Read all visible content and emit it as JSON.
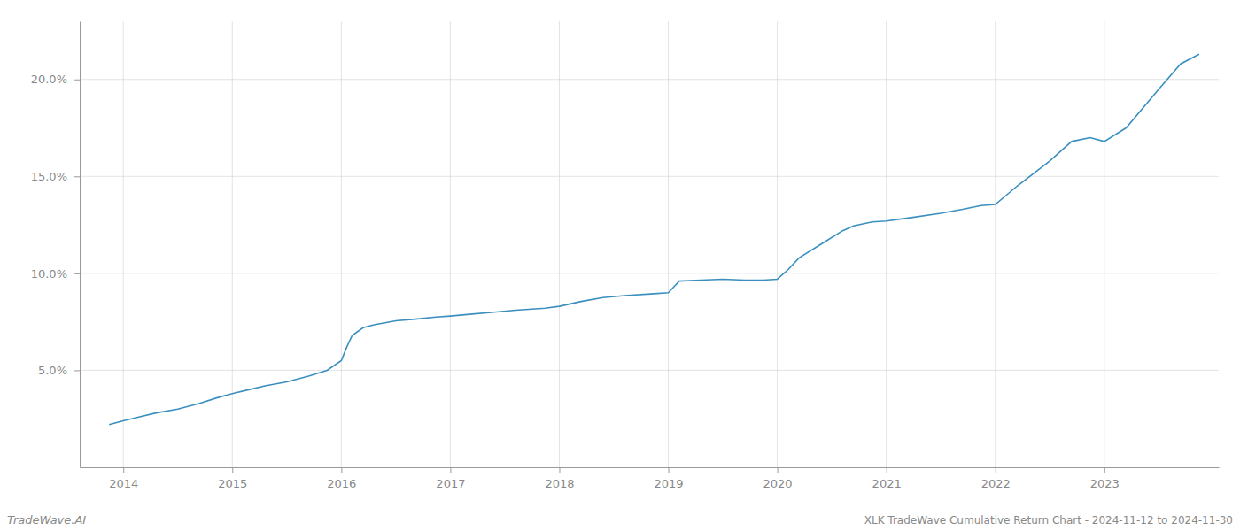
{
  "chart_data": {
    "type": "line",
    "title": "XLK TradeWave Cumulative Return Chart - 2024-11-12 to 2024-11-30",
    "annotations": [
      "TradeWave.AI"
    ],
    "x": [
      2013.87,
      2014.0,
      2014.15,
      2014.3,
      2014.5,
      2014.7,
      2014.87,
      2015.0,
      2015.15,
      2015.3,
      2015.5,
      2015.7,
      2015.87,
      2016.0,
      2016.05,
      2016.1,
      2016.2,
      2016.3,
      2016.5,
      2016.7,
      2016.87,
      2017.0,
      2017.2,
      2017.4,
      2017.6,
      2017.87,
      2018.0,
      2018.2,
      2018.4,
      2018.6,
      2018.87,
      2019.0,
      2019.05,
      2019.1,
      2019.3,
      2019.5,
      2019.7,
      2019.87,
      2020.0,
      2020.1,
      2020.2,
      2020.4,
      2020.6,
      2020.7,
      2020.87,
      2021.0,
      2021.2,
      2021.5,
      2021.7,
      2021.87,
      2022.0,
      2022.2,
      2022.5,
      2022.7,
      2022.87,
      2023.0,
      2023.2,
      2023.5,
      2023.7,
      2023.87
    ],
    "values": [
      2.2,
      2.4,
      2.6,
      2.8,
      3.0,
      3.3,
      3.6,
      3.8,
      4.0,
      4.2,
      4.4,
      4.7,
      5.0,
      5.5,
      6.2,
      6.8,
      7.2,
      7.35,
      7.55,
      7.65,
      7.75,
      7.8,
      7.9,
      8.0,
      8.1,
      8.2,
      8.3,
      8.55,
      8.75,
      8.85,
      8.95,
      9.0,
      9.3,
      9.6,
      9.65,
      9.7,
      9.65,
      9.65,
      9.7,
      10.2,
      10.8,
      11.5,
      12.2,
      12.45,
      12.65,
      12.7,
      12.85,
      13.1,
      13.3,
      13.5,
      13.55,
      14.5,
      15.8,
      16.8,
      17.0,
      16.8,
      17.5,
      19.5,
      20.8,
      21.3
    ],
    "color": "#3a8fbf",
    "xlim": [
      2013.6,
      2024.05
    ],
    "ylim": [
      0,
      23
    ],
    "xticks": [
      2014,
      2015,
      2016,
      2017,
      2018,
      2019,
      2020,
      2021,
      2022,
      2023
    ],
    "yticks": [
      {
        "value": 5.0,
        "label": "5.0%"
      },
      {
        "value": 10.0,
        "label": "10.0%"
      },
      {
        "value": 15.0,
        "label": "15.0%"
      },
      {
        "value": 20.0,
        "label": "20.0%"
      }
    ],
    "grid": true
  }
}
